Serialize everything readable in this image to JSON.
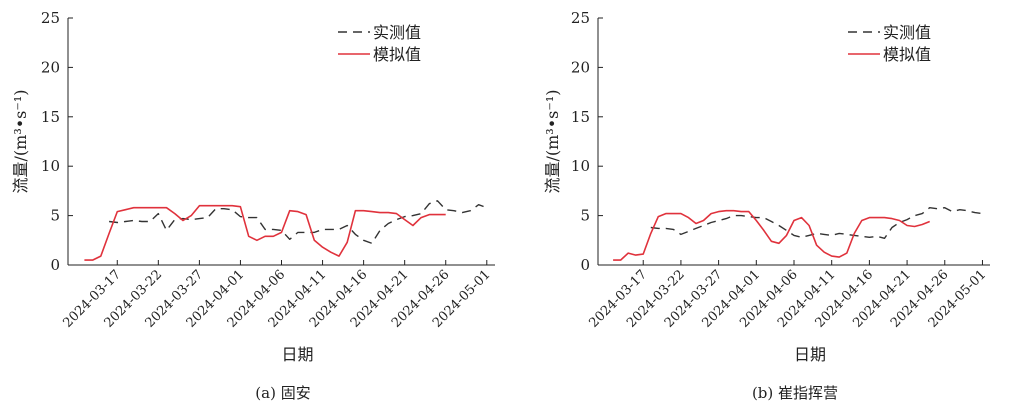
{
  "chart_data": [
    {
      "type": "line",
      "caption": "(a) 固安",
      "xlabel": "日期",
      "ylabel": "流量/(m³•s⁻¹)",
      "ylim": [
        0,
        25
      ],
      "yticks": [
        0,
        5,
        10,
        15,
        20,
        25
      ],
      "xlim": [
        "2024-03-11",
        "2024-05-02"
      ],
      "xticks": [
        "2024-03-17",
        "2024-03-22",
        "2024-03-27",
        "2024-04-01",
        "2024-04-06",
        "2024-04-11",
        "2024-04-16",
        "2024-04-21",
        "2024-04-26",
        "2024-05-01"
      ],
      "legend_position": "top-right",
      "series": [
        {
          "name": "实测值",
          "style": "dashed",
          "color": "#333333",
          "points": [
            [
              "2024-03-16",
              4.4
            ],
            [
              "2024-03-17",
              4.3
            ],
            [
              "2024-03-18",
              4.4
            ],
            [
              "2024-03-19",
              4.5
            ],
            [
              "2024-03-20",
              4.4
            ],
            [
              "2024-03-21",
              4.4
            ],
            [
              "2024-03-22",
              5.2
            ],
            [
              "2024-03-23",
              3.5
            ],
            [
              "2024-03-24",
              4.6
            ],
            [
              "2024-03-25",
              4.7
            ],
            [
              "2024-03-26",
              4.6
            ],
            [
              "2024-03-27",
              4.7
            ],
            [
              "2024-03-28",
              4.8
            ],
            [
              "2024-03-29",
              5.7
            ],
            [
              "2024-03-30",
              5.7
            ],
            [
              "2024-03-31",
              5.6
            ],
            [
              "2024-04-01",
              4.9
            ],
            [
              "2024-04-02",
              4.8
            ],
            [
              "2024-04-03",
              4.8
            ],
            [
              "2024-04-04",
              3.6
            ],
            [
              "2024-04-05",
              3.6
            ],
            [
              "2024-04-06",
              3.5
            ],
            [
              "2024-04-07",
              2.6
            ],
            [
              "2024-04-08",
              3.3
            ],
            [
              "2024-04-09",
              3.3
            ],
            [
              "2024-04-10",
              3.3
            ],
            [
              "2024-04-11",
              3.6
            ],
            [
              "2024-04-12",
              3.6
            ],
            [
              "2024-04-13",
              3.6
            ],
            [
              "2024-04-14",
              4.0
            ],
            [
              "2024-04-15",
              3.1
            ],
            [
              "2024-04-16",
              2.5
            ],
            [
              "2024-04-17",
              2.2
            ],
            [
              "2024-04-18",
              3.5
            ],
            [
              "2024-04-19",
              4.2
            ],
            [
              "2024-04-20",
              4.6
            ],
            [
              "2024-04-21",
              4.9
            ],
            [
              "2024-04-22",
              5.0
            ],
            [
              "2024-04-23",
              5.2
            ],
            [
              "2024-04-24",
              6.2
            ],
            [
              "2024-04-25",
              6.5
            ],
            [
              "2024-04-26",
              5.6
            ],
            [
              "2024-04-27",
              5.5
            ],
            [
              "2024-04-28",
              5.3
            ],
            [
              "2024-04-29",
              5.5
            ],
            [
              "2024-04-30",
              6.1
            ],
            [
              "2024-05-01",
              5.8
            ]
          ]
        },
        {
          "name": "模拟值",
          "style": "solid",
          "color": "#e0323c",
          "points": [
            [
              "2024-03-13",
              0.5
            ],
            [
              "2024-03-14",
              0.5
            ],
            [
              "2024-03-15",
              0.9
            ],
            [
              "2024-03-16",
              3.2
            ],
            [
              "2024-03-17",
              5.4
            ],
            [
              "2024-03-18",
              5.6
            ],
            [
              "2024-03-19",
              5.8
            ],
            [
              "2024-03-20",
              5.8
            ],
            [
              "2024-03-21",
              5.8
            ],
            [
              "2024-03-22",
              5.8
            ],
            [
              "2024-03-23",
              5.8
            ],
            [
              "2024-03-24",
              5.2
            ],
            [
              "2024-03-25",
              4.5
            ],
            [
              "2024-03-26",
              5.0
            ],
            [
              "2024-03-27",
              6.0
            ],
            [
              "2024-03-28",
              6.0
            ],
            [
              "2024-03-29",
              6.0
            ],
            [
              "2024-03-30",
              6.0
            ],
            [
              "2024-03-31",
              6.0
            ],
            [
              "2024-04-01",
              5.9
            ],
            [
              "2024-04-02",
              2.9
            ],
            [
              "2024-04-03",
              2.5
            ],
            [
              "2024-04-04",
              2.9
            ],
            [
              "2024-04-05",
              2.9
            ],
            [
              "2024-04-06",
              3.3
            ],
            [
              "2024-04-07",
              5.5
            ],
            [
              "2024-04-08",
              5.4
            ],
            [
              "2024-04-09",
              5.1
            ],
            [
              "2024-04-10",
              2.5
            ],
            [
              "2024-04-11",
              1.8
            ],
            [
              "2024-04-12",
              1.3
            ],
            [
              "2024-04-13",
              0.9
            ],
            [
              "2024-04-14",
              2.3
            ],
            [
              "2024-04-15",
              5.5
            ],
            [
              "2024-04-16",
              5.5
            ],
            [
              "2024-04-17",
              5.4
            ],
            [
              "2024-04-18",
              5.3
            ],
            [
              "2024-04-19",
              5.3
            ],
            [
              "2024-04-20",
              5.2
            ],
            [
              "2024-04-21",
              4.6
            ],
            [
              "2024-04-22",
              4.0
            ],
            [
              "2024-04-23",
              4.8
            ],
            [
              "2024-04-24",
              5.1
            ],
            [
              "2024-04-25",
              5.1
            ],
            [
              "2024-04-26",
              5.1
            ]
          ]
        }
      ]
    },
    {
      "type": "line",
      "caption": "(b) 崔指挥营",
      "xlabel": "日期",
      "ylabel": "流量/(m³•s⁻¹)",
      "ylim": [
        0,
        25
      ],
      "yticks": [
        0,
        5,
        10,
        15,
        20,
        25
      ],
      "xlim": [
        "2024-03-11",
        "2024-05-02"
      ],
      "xticks": [
        "2024-03-17",
        "2024-03-22",
        "2024-03-27",
        "2024-04-01",
        "2024-04-06",
        "2024-04-11",
        "2024-04-16",
        "2024-04-21",
        "2024-04-26",
        "2024-05-01"
      ],
      "legend_position": "top-right",
      "series": [
        {
          "name": "实测值",
          "style": "dashed",
          "color": "#333333",
          "points": [
            [
              "2024-03-18",
              3.8
            ],
            [
              "2024-03-19",
              3.7
            ],
            [
              "2024-03-20",
              3.7
            ],
            [
              "2024-03-21",
              3.6
            ],
            [
              "2024-03-22",
              3.1
            ],
            [
              "2024-03-23",
              3.4
            ],
            [
              "2024-03-24",
              3.7
            ],
            [
              "2024-03-25",
              4.0
            ],
            [
              "2024-03-26",
              4.3
            ],
            [
              "2024-03-27",
              4.5
            ],
            [
              "2024-03-28",
              4.7
            ],
            [
              "2024-03-29",
              5.0
            ],
            [
              "2024-03-30",
              5.0
            ],
            [
              "2024-03-31",
              4.9
            ],
            [
              "2024-04-01",
              4.8
            ],
            [
              "2024-04-02",
              4.8
            ],
            [
              "2024-04-03",
              4.4
            ],
            [
              "2024-04-04",
              4.0
            ],
            [
              "2024-04-05",
              3.5
            ],
            [
              "2024-04-06",
              3.0
            ],
            [
              "2024-04-07",
              2.8
            ],
            [
              "2024-04-08",
              3.0
            ],
            [
              "2024-04-09",
              3.2
            ],
            [
              "2024-04-10",
              3.1
            ],
            [
              "2024-04-11",
              3.0
            ],
            [
              "2024-04-12",
              3.2
            ],
            [
              "2024-04-13",
              3.1
            ],
            [
              "2024-04-14",
              3.0
            ],
            [
              "2024-04-15",
              2.9
            ],
            [
              "2024-04-16",
              2.8
            ],
            [
              "2024-04-17",
              2.9
            ],
            [
              "2024-04-18",
              2.7
            ],
            [
              "2024-04-19",
              3.8
            ],
            [
              "2024-04-20",
              4.3
            ],
            [
              "2024-04-21",
              4.6
            ],
            [
              "2024-04-22",
              5.0
            ],
            [
              "2024-04-23",
              5.2
            ],
            [
              "2024-04-24",
              5.8
            ],
            [
              "2024-04-25",
              5.7
            ],
            [
              "2024-04-26",
              5.8
            ],
            [
              "2024-04-27",
              5.4
            ],
            [
              "2024-04-28",
              5.6
            ],
            [
              "2024-04-29",
              5.5
            ],
            [
              "2024-04-30",
              5.3
            ],
            [
              "2024-05-01",
              5.2
            ]
          ]
        },
        {
          "name": "模拟值",
          "style": "solid",
          "color": "#e0323c",
          "points": [
            [
              "2024-03-13",
              0.5
            ],
            [
              "2024-03-14",
              0.5
            ],
            [
              "2024-03-15",
              1.2
            ],
            [
              "2024-03-16",
              1.0
            ],
            [
              "2024-03-17",
              1.1
            ],
            [
              "2024-03-18",
              3.2
            ],
            [
              "2024-03-19",
              4.9
            ],
            [
              "2024-03-20",
              5.2
            ],
            [
              "2024-03-21",
              5.2
            ],
            [
              "2024-03-22",
              5.2
            ],
            [
              "2024-03-23",
              4.8
            ],
            [
              "2024-03-24",
              4.2
            ],
            [
              "2024-03-25",
              4.5
            ],
            [
              "2024-03-26",
              5.2
            ],
            [
              "2024-03-27",
              5.4
            ],
            [
              "2024-03-28",
              5.5
            ],
            [
              "2024-03-29",
              5.5
            ],
            [
              "2024-03-30",
              5.4
            ],
            [
              "2024-03-31",
              5.4
            ],
            [
              "2024-04-01",
              4.5
            ],
            [
              "2024-04-02",
              3.5
            ],
            [
              "2024-04-03",
              2.4
            ],
            [
              "2024-04-04",
              2.2
            ],
            [
              "2024-04-05",
              3.0
            ],
            [
              "2024-04-06",
              4.5
            ],
            [
              "2024-04-07",
              4.8
            ],
            [
              "2024-04-08",
              4.0
            ],
            [
              "2024-04-09",
              2.0
            ],
            [
              "2024-04-10",
              1.3
            ],
            [
              "2024-04-11",
              0.9
            ],
            [
              "2024-04-12",
              0.8
            ],
            [
              "2024-04-13",
              1.2
            ],
            [
              "2024-04-14",
              3.2
            ],
            [
              "2024-04-15",
              4.5
            ],
            [
              "2024-04-16",
              4.8
            ],
            [
              "2024-04-17",
              4.8
            ],
            [
              "2024-04-18",
              4.8
            ],
            [
              "2024-04-19",
              4.7
            ],
            [
              "2024-04-20",
              4.5
            ],
            [
              "2024-04-21",
              4.0
            ],
            [
              "2024-04-22",
              3.9
            ],
            [
              "2024-04-23",
              4.1
            ],
            [
              "2024-04-24",
              4.4
            ]
          ]
        }
      ]
    }
  ]
}
